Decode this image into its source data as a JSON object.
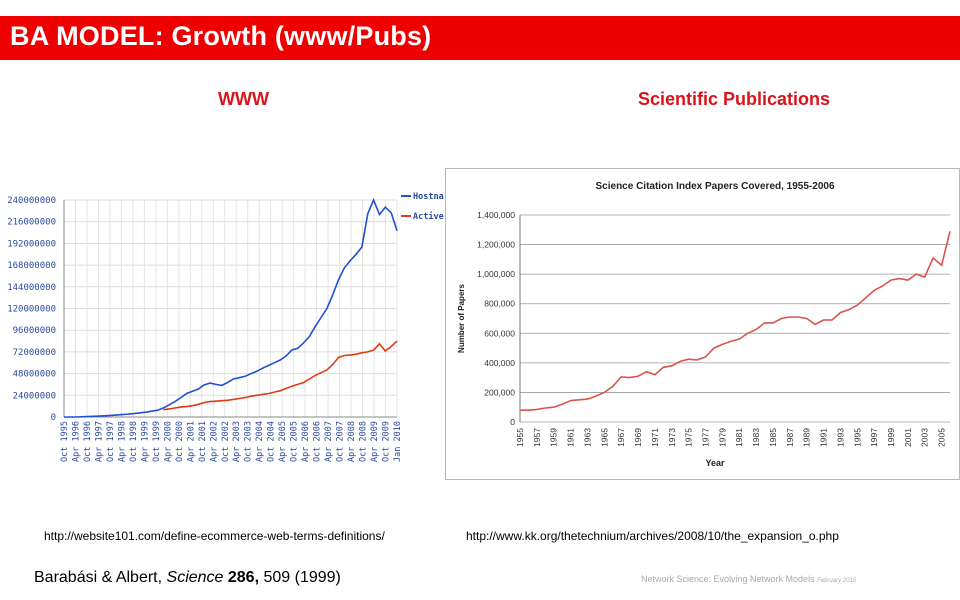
{
  "slide": {
    "title": "BA MODEL: Growth (www/Pubs)",
    "left_heading": "WWW",
    "right_heading": "Scientific Publications",
    "left_url": "http://website101.com/define-ecommerce-web-terms-definitions/",
    "right_url": "http://www.kk.org/thetechnium/archives/2008/10/the_expansion_o.php",
    "citation": {
      "authors": "Barabási & Albert, ",
      "journal": "Science",
      "volume": " 286,",
      "rest": " 509 (1999)"
    },
    "footer": {
      "main": "Network Science: Evolving Network Models",
      "small": "February 2015"
    },
    "colors": {
      "title_bar": "#ee0000",
      "heading": "#d8141d"
    }
  },
  "chart_data": [
    {
      "type": "line",
      "title": "",
      "xlabel": "",
      "ylabel": "",
      "ylim": [
        0,
        240000000
      ],
      "yticks": [
        "0",
        "24000000",
        "48000000",
        "72000000",
        "96000000",
        "120000000",
        "144000000",
        "168000000",
        "192000000",
        "216000000",
        "240000000"
      ],
      "xticks": [
        "Oct 1995",
        "Apr 1996",
        "Oct 1996",
        "Apr 1997",
        "Oct 1997",
        "Apr 1998",
        "Oct 1998",
        "Apr 1999",
        "Oct 1999",
        "Apr 2000",
        "Oct 2000",
        "Apr 2001",
        "Oct 2001",
        "Apr 2002",
        "Oct 2002",
        "Apr 2003",
        "Oct 2003",
        "Apr 2004",
        "Oct 2004",
        "Apr 2005",
        "Oct 2005",
        "Apr 2006",
        "Oct 2006",
        "Apr 2007",
        "Oct 2007",
        "Apr 2008",
        "Oct 2008",
        "Apr 2009",
        "Oct 2009",
        "Jan 2010"
      ],
      "grid": true,
      "legend": "top-right",
      "series": [
        {
          "name": "Hostna",
          "color": "#1f4fd6",
          "x": [
            1995.75,
            1996.25,
            1996.75,
            1997.25,
            1997.75,
            1998.25,
            1998.75,
            1999.25,
            1999.75,
            2000.0,
            2000.25,
            2000.5,
            2000.75,
            2001.0,
            2001.25,
            2001.5,
            2001.75,
            2002.0,
            2002.25,
            2002.5,
            2002.75,
            2003.0,
            2003.25,
            2003.5,
            2003.75,
            2004.0,
            2004.25,
            2004.5,
            2004.75,
            2005.0,
            2005.25,
            2005.5,
            2005.75,
            2006.0,
            2006.25,
            2006.5,
            2006.75,
            2007.0,
            2007.25,
            2007.5,
            2007.75,
            2008.0,
            2008.25,
            2008.5,
            2008.75,
            2009.0,
            2009.25,
            2009.5,
            2009.75,
            2010.0
          ],
          "values": [
            0,
            0,
            500000,
            1000000,
            1800000,
            2700000,
            3800000,
            5300000,
            7500000,
            10000000,
            13500000,
            17000000,
            21500000,
            26000000,
            28500000,
            31000000,
            35500000,
            37500000,
            36000000,
            35000000,
            38000000,
            42000000,
            43500000,
            45000000,
            48000000,
            50500000,
            54000000,
            57000000,
            60000000,
            63000000,
            67500000,
            74000000,
            76000000,
            82000000,
            89000000,
            100000000,
            110000000,
            120000000,
            135000000,
            152000000,
            165000000,
            173000000,
            180000000,
            188000000,
            225000000,
            240000000,
            224000000,
            232000000,
            226000000,
            206000000
          ]
        },
        {
          "name": "Active",
          "color": "#e03b12",
          "x": [
            2000.0,
            2000.25,
            2000.5,
            2000.75,
            2001.0,
            2001.25,
            2001.5,
            2001.75,
            2002.0,
            2002.25,
            2002.5,
            2002.75,
            2003.0,
            2003.25,
            2003.5,
            2003.75,
            2004.0,
            2004.25,
            2004.5,
            2004.75,
            2005.0,
            2005.25,
            2005.5,
            2005.75,
            2006.0,
            2006.25,
            2006.5,
            2006.75,
            2007.0,
            2007.25,
            2007.5,
            2007.75,
            2008.0,
            2008.25,
            2008.5,
            2008.75,
            2009.0,
            2009.25,
            2009.5,
            2009.75,
            2010.0
          ],
          "values": [
            8000000,
            9000000,
            10000000,
            11000000,
            11500000,
            12500000,
            14000000,
            16000000,
            17000000,
            17500000,
            18000000,
            18500000,
            19500000,
            20500000,
            21500000,
            23000000,
            24000000,
            25000000,
            26000000,
            27500000,
            29000000,
            31500000,
            34000000,
            36000000,
            38000000,
            42000000,
            46000000,
            49000000,
            52000000,
            58000000,
            66000000,
            68000000,
            68500000,
            69500000,
            71000000,
            72000000,
            74000000,
            81000000,
            73000000,
            78000000,
            84000000
          ]
        }
      ]
    },
    {
      "type": "line",
      "title": "Science Citation Index Papers Covered, 1955-2006",
      "xlabel": "Year",
      "ylabel": "Number of Papers",
      "ylim": [
        0,
        1400000
      ],
      "yticks": [
        "0",
        "200,000",
        "400,000",
        "600,000",
        "800,000",
        "1,000,000",
        "1,200,000",
        "1,400,000"
      ],
      "xticks": [
        "1955",
        "1957",
        "1959",
        "1961",
        "1963",
        "1965",
        "1967",
        "1969",
        "1971",
        "1973",
        "1975",
        "1977",
        "1979",
        "1981",
        "1983",
        "1985",
        "1987",
        "1989",
        "1991",
        "1993",
        "1995",
        "1997",
        "1999",
        "2001",
        "2003",
        "2005"
      ],
      "grid": true,
      "series": [
        {
          "name": "",
          "color": "#d9534f",
          "x": [
            1955,
            1956,
            1957,
            1958,
            1959,
            1960,
            1961,
            1962,
            1963,
            1964,
            1965,
            1966,
            1967,
            1968,
            1969,
            1970,
            1971,
            1972,
            1973,
            1974,
            1975,
            1976,
            1977,
            1978,
            1979,
            1980,
            1981,
            1982,
            1983,
            1984,
            1985,
            1986,
            1987,
            1988,
            1989,
            1990,
            1991,
            1992,
            1993,
            1994,
            1995,
            1996,
            1997,
            1998,
            1999,
            2000,
            2001,
            2002,
            2003,
            2004,
            2005,
            2006
          ],
          "values": [
            80000,
            80000,
            85000,
            95000,
            100000,
            120000,
            145000,
            150000,
            155000,
            175000,
            200000,
            240000,
            305000,
            300000,
            310000,
            340000,
            320000,
            370000,
            380000,
            410000,
            425000,
            420000,
            440000,
            500000,
            525000,
            545000,
            560000,
            600000,
            625000,
            670000,
            670000,
            700000,
            710000,
            710000,
            700000,
            660000,
            690000,
            690000,
            740000,
            760000,
            790000,
            840000,
            890000,
            920000,
            960000,
            970000,
            960000,
            1000000,
            980000,
            1110000,
            1060000,
            1290000
          ]
        }
      ]
    }
  ]
}
